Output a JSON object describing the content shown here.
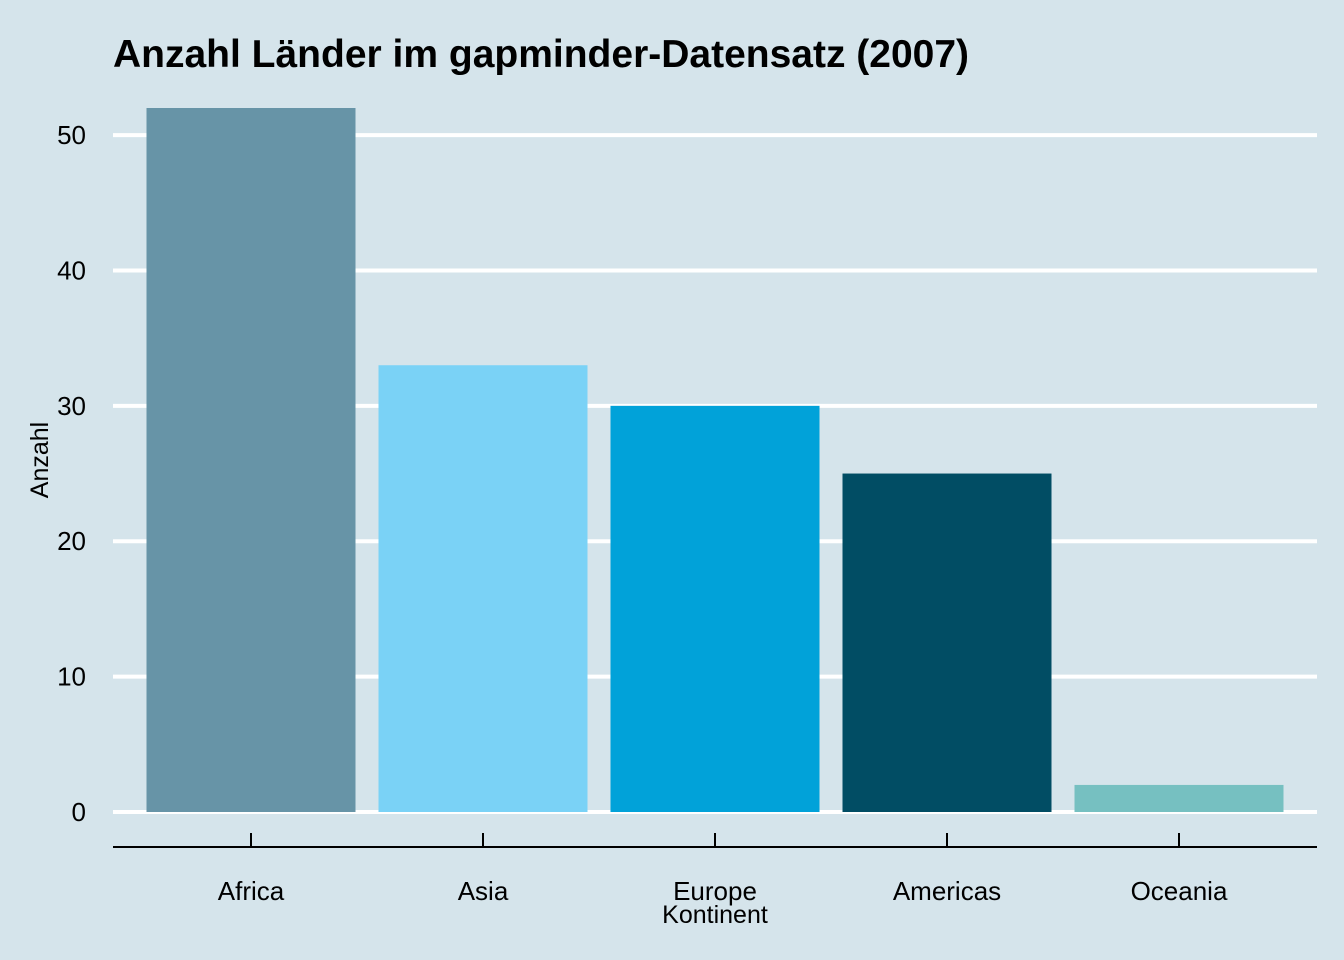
{
  "chart_data": {
    "type": "bar",
    "title": "Anzahl Länder im gapminder-Datensatz (2007)",
    "xlabel": "Kontinent",
    "ylabel": "Anzahl",
    "categories": [
      "Africa",
      "Asia",
      "Europe",
      "Americas",
      "Oceania"
    ],
    "values": [
      52,
      33,
      30,
      25,
      2
    ],
    "colors": [
      "#6794a7",
      "#7ad2f6",
      "#01a2d9",
      "#014d64",
      "#76c0c1"
    ],
    "ylim": [
      0,
      52
    ],
    "yticks": [
      0,
      10,
      20,
      30,
      40,
      50
    ],
    "grid": "horizontal",
    "legend": "none",
    "background_color": "#d5e4eb",
    "gridline_color": "#ffffff"
  }
}
